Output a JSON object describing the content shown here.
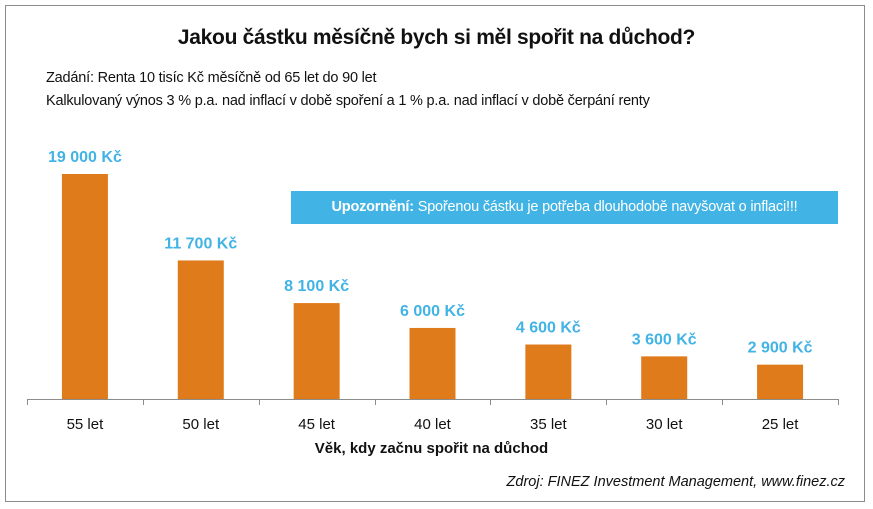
{
  "chart_data": {
    "type": "bar",
    "title": "Jakou částku měsíčně bych si měl spořit na důchod?",
    "subtitle_lines": [
      "Zadání: Renta 10 tisíc Kč měsíčně od 65 let do 90 let",
      "Kalkulovaný výnos 3 % p.a. nad inflací v době spoření a 1 % p.a. nad inflací v době čerpání renty"
    ],
    "categories": [
      "55 let",
      "50 let",
      "45 let",
      "40 let",
      "35 let",
      "30 let",
      "25 let"
    ],
    "values": [
      19000,
      11700,
      8100,
      6000,
      4600,
      3600,
      2900
    ],
    "data_labels": [
      "19 000 Kč",
      "11 700 Kč",
      "8 100 Kč",
      "6 000 Kč",
      "4 600 Kč",
      "3 600 Kč",
      "2 900 Kč"
    ],
    "xlabel": "Věk, kdy začnu spořit na důchod",
    "ylabel": "",
    "ylim": [
      0,
      19000
    ],
    "grid": false,
    "bar_color": "#e07b1c",
    "label_color": "#42b3e5",
    "annotation": {
      "bold": "Upozornění:",
      "text": " Spořenou částku je potřeba dlouhodobě navyšovat o inflaci!!!",
      "background": "#42b3e5"
    },
    "source": "Zdroj: FINEZ Investment Management, www.finez.cz"
  }
}
